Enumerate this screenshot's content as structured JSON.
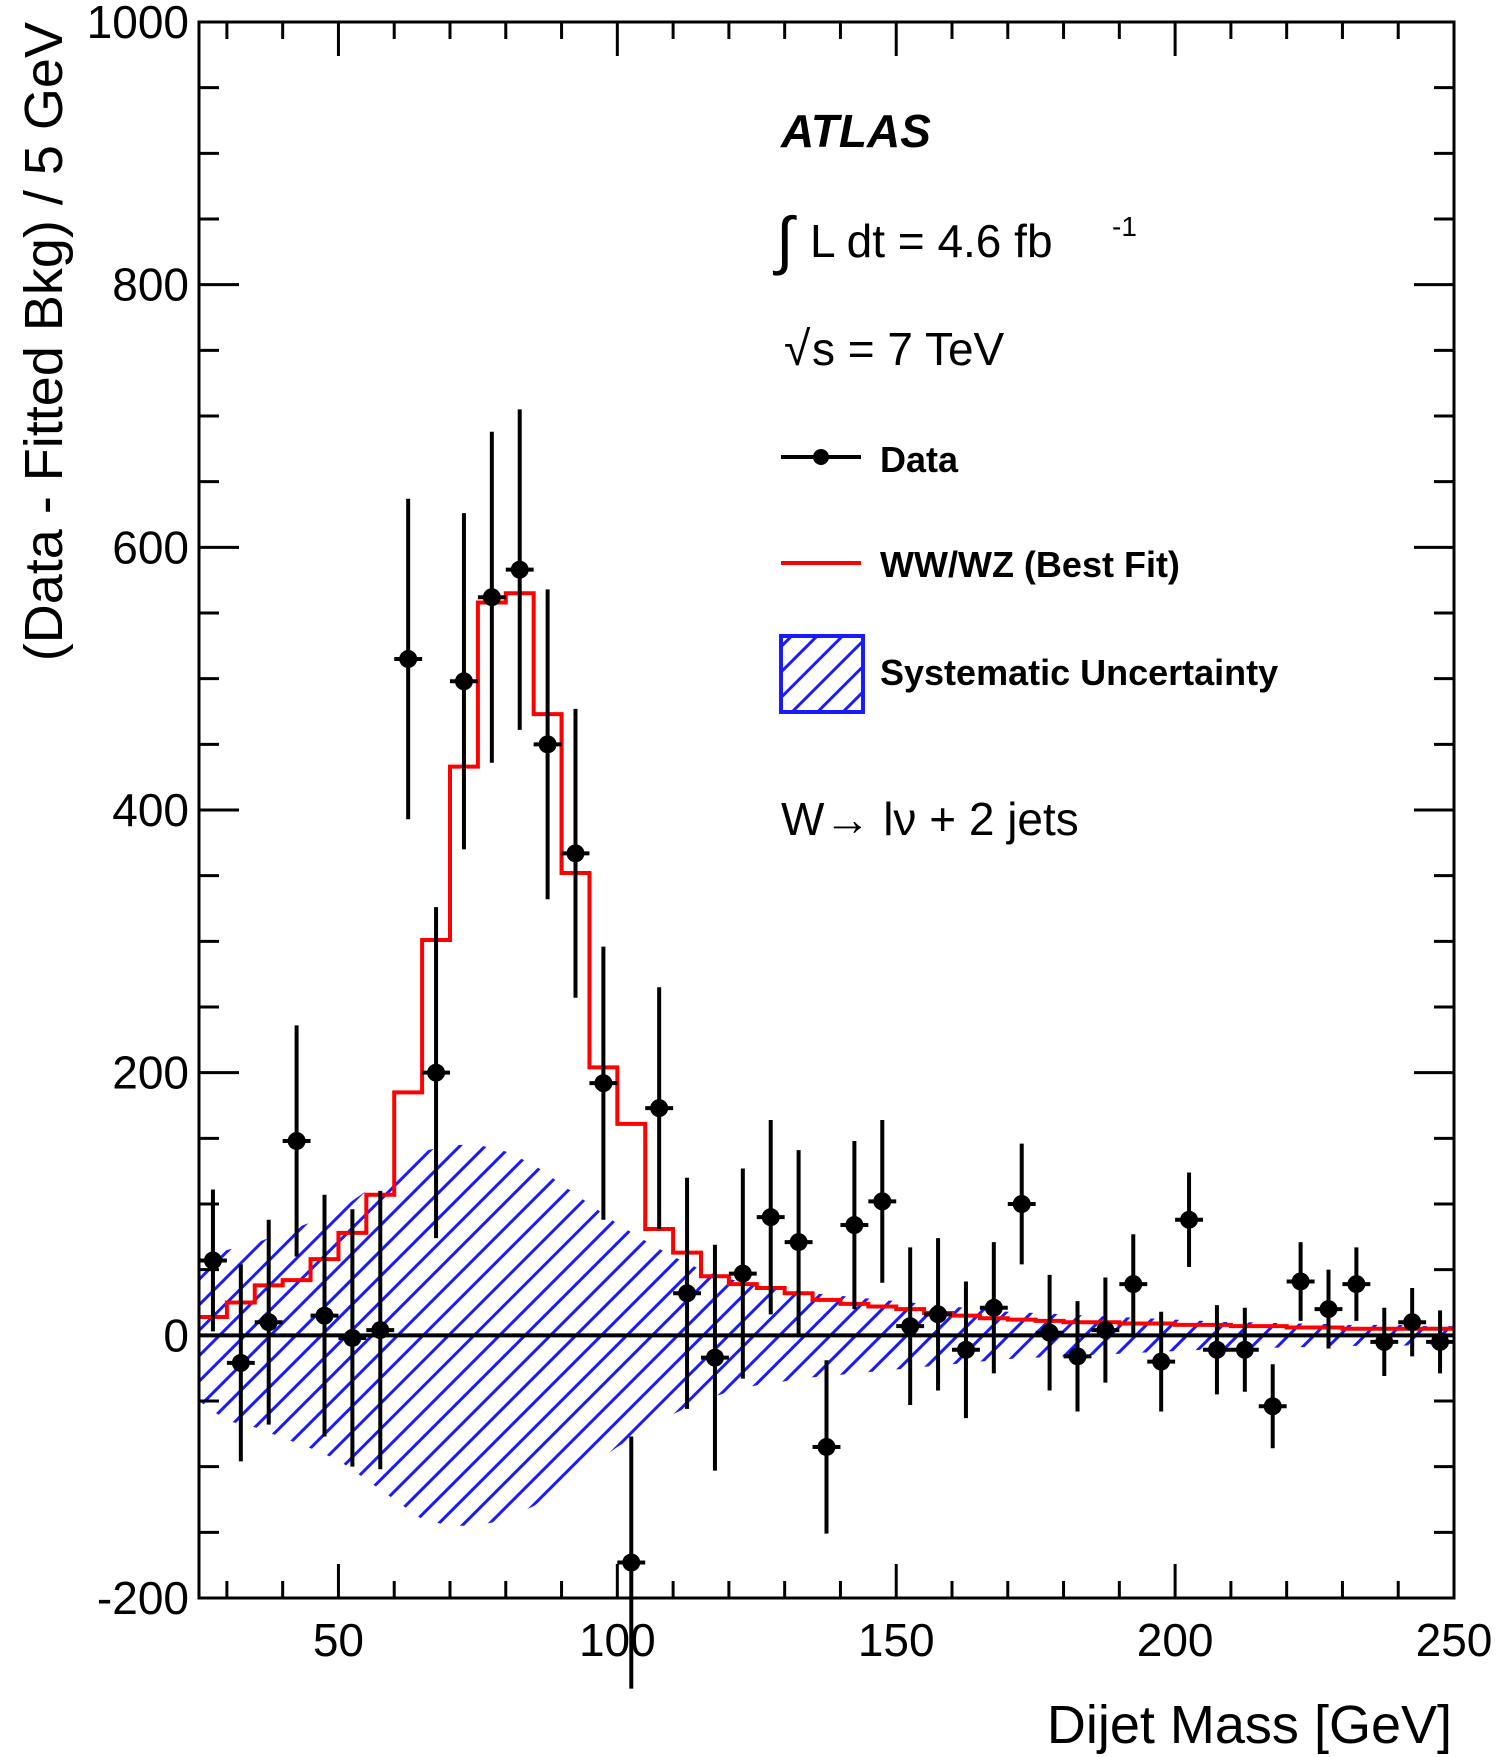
{
  "chart_data": {
    "type": "line",
    "annotations": {
      "experiment": "ATLAS",
      "lumi_prefix": "L dt = 4.6 fb",
      "lumi_exponent": "-1",
      "energy": "s = 7 TeV",
      "channel": "W→ lν +  2 jets"
    },
    "xlabel": "Dijet Mass [GeV]",
    "ylabel": "(Data - Fitted Bkg) / 5 GeV",
    "xlim": [
      25,
      250
    ],
    "ylim": [
      -200,
      1000
    ],
    "x_ticks": [
      "50",
      "100",
      "150",
      "200",
      "250"
    ],
    "y_ticks": [
      "-200",
      "0",
      "200",
      "400",
      "600",
      "800",
      "1000"
    ],
    "legend": {
      "placement": "top-right",
      "entries": [
        "Data",
        "WW/WZ (Best Fit)",
        "Systematic Uncertainty"
      ]
    },
    "series": [
      {
        "name": "Data",
        "kind": "points_with_errors",
        "x": [
          27.5,
          32.5,
          37.5,
          42.5,
          47.5,
          52.5,
          57.5,
          62.5,
          67.5,
          72.5,
          77.5,
          82.5,
          87.5,
          92.5,
          97.5,
          102.5,
          107.5,
          112.5,
          117.5,
          122.5,
          127.5,
          132.5,
          137.5,
          142.5,
          147.5,
          152.5,
          157.5,
          162.5,
          167.5,
          172.5,
          177.5,
          182.5,
          187.5,
          192.5,
          197.5,
          202.5,
          207.5,
          212.5,
          217.5,
          222.5,
          227.5,
          232.5,
          237.5,
          242.5,
          247.5
        ],
        "y": [
          57,
          -21,
          10,
          148,
          15,
          -2,
          4,
          515,
          200,
          498,
          562,
          583,
          450,
          367,
          192,
          -173,
          173,
          32,
          -17,
          47,
          90,
          71,
          -85,
          84,
          102,
          7,
          16,
          -11,
          21,
          100,
          2,
          -16,
          4,
          39,
          -20,
          88,
          -11,
          -11,
          -54,
          41,
          20,
          39,
          -5,
          10,
          -5
        ],
        "yerr": [
          54,
          75,
          78,
          88,
          92,
          98,
          106,
          122,
          126,
          128,
          126,
          122,
          118,
          110,
          104,
          96,
          92,
          88,
          86,
          80,
          74,
          70,
          66,
          64,
          62,
          60,
          58,
          52,
          50,
          46,
          44,
          42,
          40,
          38,
          38,
          36,
          34,
          32,
          32,
          30,
          30,
          28,
          26,
          26,
          24
        ]
      },
      {
        "name": "WW/WZ (Best Fit)",
        "kind": "step",
        "edges": [
          25,
          30,
          35,
          40,
          45,
          50,
          55,
          60,
          65,
          70,
          75,
          80,
          85,
          90,
          95,
          100,
          105,
          110,
          115,
          120,
          125,
          130,
          135,
          140,
          145,
          150,
          155,
          160,
          165,
          170,
          175,
          180,
          185,
          190,
          195,
          200,
          205,
          210,
          215,
          220,
          225,
          230,
          235,
          240,
          245,
          250
        ],
        "values": [
          14,
          25,
          38,
          42,
          58,
          78,
          107,
          185,
          301,
          433,
          558,
          565,
          473,
          352,
          204,
          161,
          81,
          63,
          45,
          39,
          36,
          32,
          27,
          24,
          22,
          20,
          17,
          15,
          13,
          12,
          11,
          10,
          10,
          9,
          9,
          8,
          8,
          7,
          7,
          6,
          6,
          5,
          5,
          5,
          5
        ]
      },
      {
        "name": "Systematic Uncertainty",
        "kind": "hatched_band",
        "x": [
          25,
          30,
          35,
          40,
          45,
          50,
          55,
          60,
          65,
          70,
          75,
          80,
          85,
          90,
          95,
          100,
          105,
          110,
          115,
          120,
          125,
          130,
          135,
          140,
          145,
          150,
          155,
          160,
          165,
          170,
          175,
          180,
          185,
          190,
          195,
          200,
          205,
          210,
          215,
          220,
          225,
          230,
          235,
          240,
          245,
          250
        ],
        "upper": [
          55,
          65,
          70,
          78,
          86,
          95,
          110,
          125,
          140,
          145,
          145,
          140,
          130,
          115,
          100,
          85,
          72,
          60,
          50,
          43,
          38,
          35,
          32,
          30,
          28,
          26,
          24,
          22,
          20,
          18,
          17,
          16,
          15,
          14,
          13,
          12,
          11,
          10,
          10,
          9,
          9,
          8,
          8,
          8,
          7,
          7
        ],
        "lower": [
          -50,
          -65,
          -70,
          -78,
          -86,
          -95,
          -110,
          -125,
          -140,
          -145,
          -145,
          -140,
          -130,
          -115,
          -100,
          -85,
          -72,
          -60,
          -50,
          -43,
          -38,
          -35,
          -32,
          -30,
          -28,
          -26,
          -24,
          -22,
          -20,
          -18,
          -17,
          -16,
          -15,
          -14,
          -13,
          -12,
          -11,
          -10,
          -10,
          -9,
          -9,
          -8,
          -8,
          -8,
          -7,
          -7
        ]
      }
    ],
    "colors": {
      "data": "#000000",
      "fit": "#ff0000",
      "band": "#1a1aff"
    }
  }
}
